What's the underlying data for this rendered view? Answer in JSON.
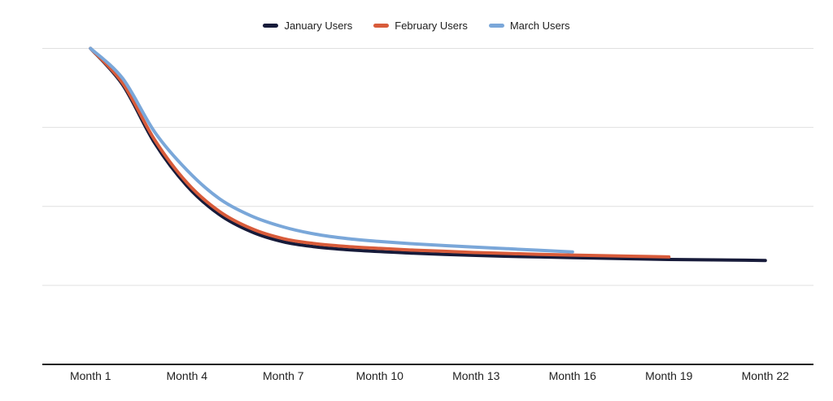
{
  "legend": {
    "items": [
      {
        "label": "January Users",
        "color": "#171b3a"
      },
      {
        "label": "February Users",
        "color": "#d85b3a"
      },
      {
        "label": "March Users",
        "color": "#7aa7d9"
      }
    ]
  },
  "colors": {
    "background": "#ffffff",
    "gridline": "#e0e0e0",
    "axis_line": "#1f1f1f",
    "tick_label": "#1f1f1f",
    "legend_label": "#212121",
    "january": "#171b3a",
    "february": "#d85b3a",
    "march": "#7aa7d9"
  },
  "chart_data": {
    "type": "line",
    "smooth": true,
    "x_unit": "Month",
    "xlim": [
      -0.5,
      23.5
    ],
    "ylim": [
      0,
      100
    ],
    "grid": true,
    "gridline_values": [
      25,
      50,
      75,
      100
    ],
    "baseline_value": 0,
    "legend_position": "top-center",
    "x_ticks": [
      {
        "month": 1,
        "label": "Month 1"
      },
      {
        "month": 4,
        "label": "Month 4"
      },
      {
        "month": 7,
        "label": "Month 7"
      },
      {
        "month": 10,
        "label": "Month 10"
      },
      {
        "month": 13,
        "label": "Month 13"
      },
      {
        "month": 16,
        "label": "Month 16"
      },
      {
        "month": 19,
        "label": "Month 19"
      },
      {
        "month": 22,
        "label": "Month 22"
      }
    ],
    "series": [
      {
        "name": "January Users",
        "color": "#171b3a",
        "start_month": 1,
        "values": [
          100,
          88.5,
          70,
          56.5,
          47.5,
          42,
          38.8,
          37.2,
          36.3,
          35.7,
          35.2,
          34.8,
          34.5,
          34.2,
          34.0,
          33.8,
          33.6,
          33.4,
          33.2,
          33.1,
          33.0,
          32.9
        ]
      },
      {
        "name": "February Users",
        "color": "#d85b3a",
        "start_month": 1,
        "values": [
          100,
          89,
          71,
          57.5,
          48.5,
          43,
          39.8,
          38.2,
          37.3,
          36.7,
          36.2,
          35.8,
          35.4,
          35.1,
          34.8,
          34.6,
          34.4,
          34.2,
          34.0
        ]
      },
      {
        "name": "March Users",
        "color": "#7aa7d9",
        "start_month": 1,
        "values": [
          100,
          90.5,
          73.5,
          61.5,
          52.5,
          47,
          43.5,
          41.2,
          39.8,
          38.9,
          38.2,
          37.6,
          37.1,
          36.6,
          36.1,
          35.6
        ]
      }
    ]
  }
}
